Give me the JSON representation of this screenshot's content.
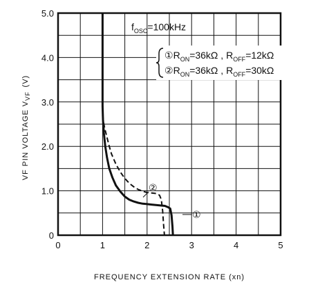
{
  "chart_data": {
    "type": "line",
    "xlabel": "FREQUENCY EXTENSION RATE (xn)",
    "ylabel_main": "VF PIN VOLTAGE V",
    "ylabel_sub": "VF",
    "ylabel_unit": "(V)",
    "xlim": [
      0,
      5
    ],
    "ylim": [
      0,
      5
    ],
    "x_ticks": [
      "0",
      "1",
      "2",
      "3",
      "4",
      "5"
    ],
    "y_ticks": [
      "0",
      "1.0",
      "2.0",
      "3.0",
      "4.0",
      "5.0"
    ],
    "grid": true,
    "annotations": {
      "fosc_main": "f",
      "fosc_sub": "OSC",
      "fosc_rest": "=100kHz",
      "curve1_marker": "①",
      "curve2_marker": "②",
      "legend_line1": {
        "marker": "①",
        "r_main": "R",
        "r_on_sub": "ON",
        "r_on_val": "=36kΩ , R",
        "r_off_sub": "OFF",
        "r_off_val": "=12kΩ"
      },
      "legend_line2": {
        "marker": "②",
        "r_main": "R",
        "r_on_sub": "ON",
        "r_on_val": "=36kΩ , R",
        "r_off_sub": "OFF",
        "r_off_val": "=30kΩ"
      }
    },
    "series": [
      {
        "name": "①",
        "style": "solid",
        "x": [
          1.0,
          1.0,
          1.01,
          1.03,
          1.06,
          1.1,
          1.15,
          1.22,
          1.3,
          1.4,
          1.5,
          1.6,
          1.7,
          1.8,
          1.9,
          2.0,
          2.1,
          2.2,
          2.3,
          2.4,
          2.47,
          2.52,
          2.55,
          2.57,
          2.58
        ],
        "y": [
          5.0,
          2.9,
          2.6,
          2.3,
          2.0,
          1.75,
          1.5,
          1.3,
          1.12,
          0.98,
          0.87,
          0.8,
          0.76,
          0.73,
          0.71,
          0.7,
          0.69,
          0.68,
          0.67,
          0.66,
          0.63,
          0.6,
          0.45,
          0.2,
          0.0
        ]
      },
      {
        "name": "②",
        "style": "dashed",
        "x": [
          1.0,
          1.02,
          1.05,
          1.1,
          1.15,
          1.2,
          1.3,
          1.4,
          1.5,
          1.6,
          1.7,
          1.8,
          1.9,
          2.0,
          2.1,
          2.2,
          2.28,
          2.32,
          2.35,
          2.37,
          2.39
        ],
        "y": [
          2.7,
          2.55,
          2.4,
          2.2,
          2.0,
          1.83,
          1.6,
          1.42,
          1.28,
          1.17,
          1.09,
          1.03,
          0.99,
          0.96,
          0.95,
          0.94,
          0.9,
          0.8,
          0.55,
          0.25,
          0.0
        ]
      }
    ]
  }
}
